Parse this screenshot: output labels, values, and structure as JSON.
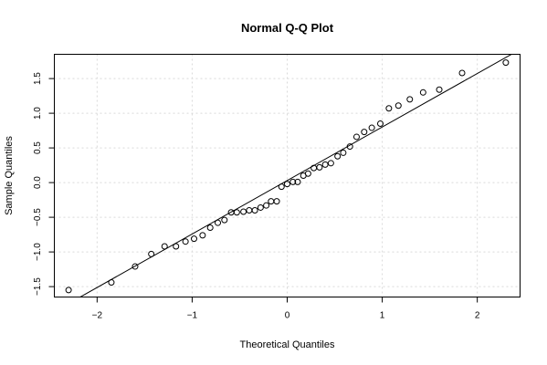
{
  "chart_data": {
    "type": "scatter",
    "title": "Normal Q-Q Plot",
    "xlabel": "Theoretical Quantiles",
    "ylabel": "Sample Quantiles",
    "xlim": [
      -2.45,
      2.45
    ],
    "ylim": [
      -1.65,
      1.85
    ],
    "x_ticks": [
      -2,
      -1,
      0,
      1,
      2
    ],
    "x_tick_labels": [
      "−2",
      "−1",
      "0",
      "1",
      "2"
    ],
    "y_ticks": [
      -1.5,
      -1.0,
      -0.5,
      0.0,
      0.5,
      1.0,
      1.5
    ],
    "y_tick_labels": [
      "−1.5",
      "−1.0",
      "−0.5",
      "0.0",
      "0.5",
      "1.0",
      "1.5"
    ],
    "grid": true,
    "reference_line": {
      "x": [
        -2.45,
        2.45
      ],
      "y": [
        -1.86,
        1.92
      ]
    },
    "points": [
      [
        -2.3,
        -1.55
      ],
      [
        -1.85,
        -1.44
      ],
      [
        -1.6,
        -1.21
      ],
      [
        -1.43,
        -1.03
      ],
      [
        -1.29,
        -0.92
      ],
      [
        -1.17,
        -0.92
      ],
      [
        -1.07,
        -0.85
      ],
      [
        -0.98,
        -0.81
      ],
      [
        -0.89,
        -0.76
      ],
      [
        -0.81,
        -0.65
      ],
      [
        -0.73,
        -0.58
      ],
      [
        -0.66,
        -0.54
      ],
      [
        -0.59,
        -0.43
      ],
      [
        -0.53,
        -0.43
      ],
      [
        -0.46,
        -0.42
      ],
      [
        -0.4,
        -0.4
      ],
      [
        -0.34,
        -0.4
      ],
      [
        -0.28,
        -0.36
      ],
      [
        -0.22,
        -0.33
      ],
      [
        -0.17,
        -0.27
      ],
      [
        -0.11,
        -0.27
      ],
      [
        -0.06,
        -0.06
      ],
      [
        0.0,
        -0.02
      ],
      [
        0.06,
        0.01
      ],
      [
        0.11,
        0.01
      ],
      [
        0.17,
        0.1
      ],
      [
        0.22,
        0.13
      ],
      [
        0.28,
        0.21
      ],
      [
        0.34,
        0.22
      ],
      [
        0.4,
        0.26
      ],
      [
        0.46,
        0.28
      ],
      [
        0.53,
        0.38
      ],
      [
        0.59,
        0.43
      ],
      [
        0.66,
        0.52
      ],
      [
        0.73,
        0.66
      ],
      [
        0.81,
        0.73
      ],
      [
        0.89,
        0.79
      ],
      [
        0.98,
        0.85
      ],
      [
        1.07,
        1.07
      ],
      [
        1.17,
        1.11
      ],
      [
        1.29,
        1.2
      ],
      [
        1.43,
        1.3
      ],
      [
        1.6,
        1.34
      ],
      [
        1.84,
        1.58
      ],
      [
        2.3,
        1.73
      ]
    ]
  }
}
